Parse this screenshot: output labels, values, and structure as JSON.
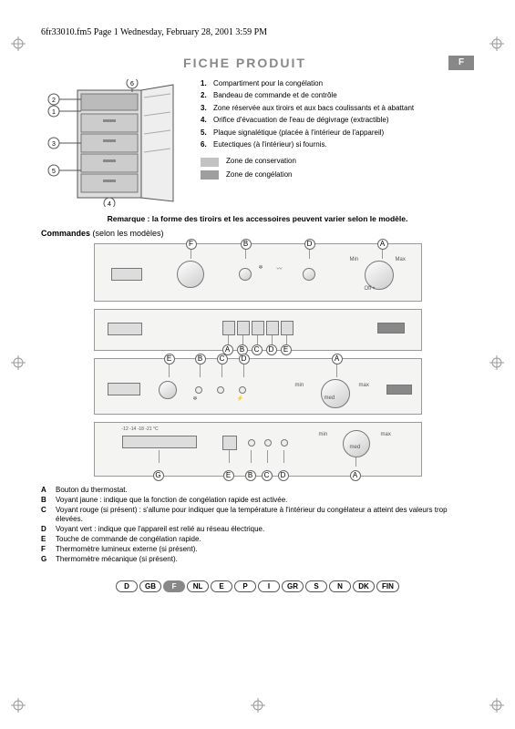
{
  "header": "6fr33010.fm5  Page 1  Wednesday, February 28, 2001  3:59 PM",
  "title": "FICHE PRODUIT",
  "langBadge": "F",
  "parts": [
    {
      "n": "1.",
      "t": "Compartiment pour la congélation"
    },
    {
      "n": "2.",
      "t": "Bandeau de commande et de contrôle"
    },
    {
      "n": "3.",
      "t": "Zone réservée aux tiroirs et aux bacs coulissants et à abattant"
    },
    {
      "n": "4.",
      "t": "Orifice d'évacuation de l'eau de dégivrage (extractible)"
    },
    {
      "n": "5.",
      "t": "Plaque signalétique (placée à l'intérieur de l'appareil)"
    },
    {
      "n": "6.",
      "t": "Eutectiques (à l'intérieur) si fournis."
    }
  ],
  "legend": {
    "conservation": {
      "label": "Zone de conservation",
      "color": "#c2c2c2"
    },
    "congelation": {
      "label": "Zone de congélation",
      "color": "#9e9e9e"
    }
  },
  "remark": "Remarque : la forme des tiroirs et les accessoires peuvent varier selon le modèle.",
  "commandes_label": "Commandes",
  "commandes_note": " (selon les modèles)",
  "panel1_labels": {
    "F": "F",
    "B": "B",
    "D": "D",
    "A": "A",
    "min": "Min",
    "max": "Max",
    "off": "Off •"
  },
  "panel2_labels": {
    "A": "A",
    "B": "B",
    "C": "C",
    "D": "D",
    "E": "E"
  },
  "panel3_labels": {
    "E": "E",
    "B": "B",
    "C": "C",
    "D": "D",
    "A": "A",
    "min": "min",
    "med": "med",
    "max": "max"
  },
  "panel4_labels": {
    "G": "G",
    "E": "E",
    "B": "B",
    "C": "C",
    "D": "D",
    "A": "A",
    "min": "min",
    "med": "med",
    "max": "max",
    "temps": "-12  -14    -18   -21 °C"
  },
  "bottom": [
    {
      "l": "A",
      "t": "Bouton du thermostat."
    },
    {
      "l": "B",
      "t": "Voyant jaune : indique que la fonction de congélation rapide est activée."
    },
    {
      "l": "C",
      "t": "Voyant rouge (si présent) : s'allume pour indiquer que la température à l'intérieur du congélateur a atteint des valeurs trop élevées."
    },
    {
      "l": "D",
      "t": "Voyant vert : indique que l'appareil est relié au réseau électrique."
    },
    {
      "l": "E",
      "t": "Touche de commande de congélation rapide."
    },
    {
      "l": "F",
      "t": "Thermomètre lumineux externe (si présent)."
    },
    {
      "l": "G",
      "t": "Thermomètre mécanique (si présent)."
    }
  ],
  "langs": [
    "D",
    "GB",
    "F",
    "NL",
    "E",
    "P",
    "I",
    "GR",
    "S",
    "N",
    "DK",
    "FIN"
  ],
  "activeLang": "F",
  "colors": {
    "grey": "#888888",
    "light": "#f4f4f2"
  }
}
